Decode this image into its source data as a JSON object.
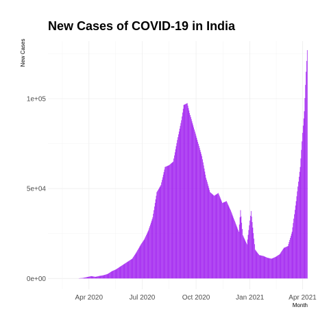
{
  "chart_data": {
    "type": "bar",
    "title": "New Cases of COVID-19 in India",
    "xlabel": "Month",
    "ylabel": "New Cases",
    "x_axis": {
      "type": "date",
      "range": [
        "2020-01-22",
        "2021-04-11"
      ],
      "ticks": [
        {
          "date": "2020-04-01",
          "label": "Apr 2020"
        },
        {
          "date": "2020-07-01",
          "label": "Jul 2020"
        },
        {
          "date": "2020-10-01",
          "label": "Oct 2020"
        },
        {
          "date": "2021-01-01",
          "label": "Jan 2021"
        },
        {
          "date": "2021-04-01",
          "label": "Apr 2021"
        }
      ]
    },
    "y_axis": {
      "range": [
        -6000,
        132000
      ],
      "ticks": [
        {
          "value": 0,
          "label": "0e+00"
        },
        {
          "value": 50000,
          "label": "5e+04"
        },
        {
          "value": 100000,
          "label": "1e+05"
        }
      ]
    },
    "grid": true,
    "legend": "none",
    "bar_color": "#a020f0",
    "series": [
      {
        "points": [
          [
            "2020-03-15",
            100
          ],
          [
            "2020-03-22",
            300
          ],
          [
            "2020-03-29",
            800
          ],
          [
            "2020-04-05",
            1300
          ],
          [
            "2020-04-12",
            900
          ],
          [
            "2020-04-19",
            1400
          ],
          [
            "2020-04-26",
            1800
          ],
          [
            "2020-05-03",
            2500
          ],
          [
            "2020-05-10",
            4000
          ],
          [
            "2020-05-17",
            5000
          ],
          [
            "2020-05-24",
            6500
          ],
          [
            "2020-05-31",
            8000
          ],
          [
            "2020-06-07",
            9500
          ],
          [
            "2020-06-14",
            11000
          ],
          [
            "2020-06-21",
            14500
          ],
          [
            "2020-06-28",
            18500
          ],
          [
            "2020-07-05",
            22000
          ],
          [
            "2020-07-12",
            27000
          ],
          [
            "2020-07-19",
            34000
          ],
          [
            "2020-07-26",
            48000
          ],
          [
            "2020-08-02",
            52000
          ],
          [
            "2020-08-09",
            62000
          ],
          [
            "2020-08-16",
            63000
          ],
          [
            "2020-08-23",
            65000
          ],
          [
            "2020-08-30",
            77000
          ],
          [
            "2020-09-06",
            88000
          ],
          [
            "2020-09-10",
            96500
          ],
          [
            "2020-09-13",
            97000
          ],
          [
            "2020-09-16",
            97500
          ],
          [
            "2020-09-20",
            92000
          ],
          [
            "2020-09-27",
            84000
          ],
          [
            "2020-10-04",
            76000
          ],
          [
            "2020-10-11",
            68000
          ],
          [
            "2020-10-18",
            56000
          ],
          [
            "2020-10-25",
            48000
          ],
          [
            "2020-11-01",
            46000
          ],
          [
            "2020-11-08",
            47500
          ],
          [
            "2020-11-15",
            42000
          ],
          [
            "2020-11-22",
            43000
          ],
          [
            "2020-11-29",
            38000
          ],
          [
            "2020-12-06",
            32000
          ],
          [
            "2020-12-13",
            26000
          ],
          [
            "2020-12-16",
            38000
          ],
          [
            "2020-12-20",
            24000
          ],
          [
            "2020-12-27",
            19000
          ],
          [
            "2021-01-03",
            37500
          ],
          [
            "2021-01-10",
            16000
          ],
          [
            "2021-01-17",
            13000
          ],
          [
            "2021-01-24",
            12500
          ],
          [
            "2021-01-31",
            11500
          ],
          [
            "2021-02-07",
            11000
          ],
          [
            "2021-02-14",
            12000
          ],
          [
            "2021-02-21",
            13500
          ],
          [
            "2021-02-28",
            17000
          ],
          [
            "2021-03-07",
            18000
          ],
          [
            "2021-03-14",
            26000
          ],
          [
            "2021-03-21",
            43000
          ],
          [
            "2021-03-28",
            62000
          ],
          [
            "2021-04-01",
            81000
          ],
          [
            "2021-04-04",
            93000
          ],
          [
            "2021-04-07",
            115000
          ],
          [
            "2021-04-09",
            127000
          ]
        ]
      }
    ]
  }
}
